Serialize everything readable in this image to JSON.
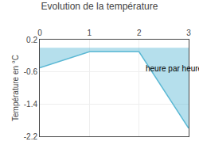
{
  "chart_data": {
    "type": "area",
    "title": "Evolution de la température",
    "y_label": "Température en °C",
    "x": [
      0,
      1,
      2,
      3
    ],
    "values": [
      -0.5,
      -0.1,
      -0.1,
      -2.0
    ],
    "color": "#5bb8d4",
    "xlim": [
      0,
      3
    ],
    "xticks": [
      0,
      1,
      2,
      3
    ],
    "ylim": [
      -2.2,
      0.2
    ],
    "yticks": [
      0.2,
      -0.6,
      -1.4,
      -2.2
    ],
    "grid": true,
    "annotations": [
      {
        "text": "heure par heure",
        "x": 2.1,
        "y": -0.52
      }
    ]
  }
}
